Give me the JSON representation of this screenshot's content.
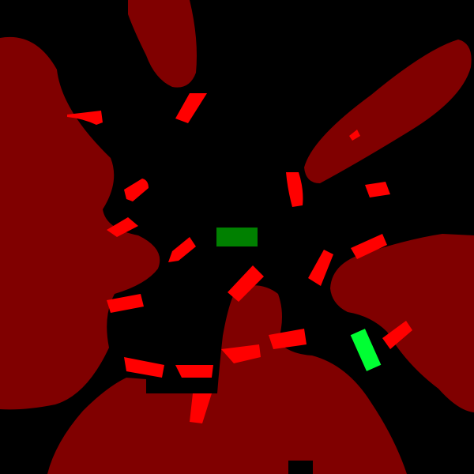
{
  "scene": {
    "background_color": "#000000",
    "palette": {
      "terrain": "#800000",
      "hazard": "#ff0000",
      "player": "#00ff33",
      "goal": "#008000"
    },
    "entities": {
      "player_icon": "agent-block-icon",
      "goal_icon": "target-block-icon",
      "hazard_icon": "red-capsule-icon",
      "terrain_icon": "dark-red-blob-icon"
    }
  }
}
